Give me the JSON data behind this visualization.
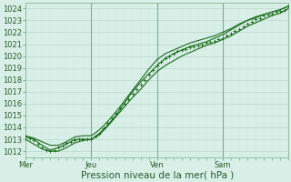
{
  "title": "",
  "xlabel": "Pression niveau de la mer( hPa )",
  "ylabel": "",
  "bg_color": "#d8efe8",
  "plot_bg_color": "#d8f0e8",
  "grid_color_major": "#b8d8cc",
  "grid_color_minor": "#cce8dc",
  "line_color": "#1a6b1a",
  "dot_color": "#1a6b1a",
  "ylim": [
    1011.5,
    1024.5
  ],
  "yticks": [
    1012,
    1013,
    1014,
    1015,
    1016,
    1017,
    1018,
    1019,
    1020,
    1021,
    1022,
    1023,
    1024
  ],
  "xticks_pos": [
    0,
    72,
    144,
    216
  ],
  "xtick_labels": [
    "Mer",
    "Jeu",
    "Ven",
    "Sam"
  ],
  "xlim": [
    0,
    288
  ],
  "series": {
    "line1": {
      "x": [
        0,
        9,
        18,
        27,
        36,
        45,
        54,
        63,
        72,
        81,
        90,
        99,
        108,
        117,
        126,
        135,
        144,
        153,
        162,
        171,
        180,
        189,
        198,
        207,
        216,
        225,
        234,
        243,
        252,
        261,
        270,
        279,
        288
      ],
      "y": [
        1013.2,
        1013.0,
        1012.5,
        1012.1,
        1012.3,
        1012.6,
        1013.0,
        1013.0,
        1013.0,
        1013.5,
        1014.2,
        1015.0,
        1016.0,
        1017.0,
        1017.8,
        1018.5,
        1019.2,
        1019.8,
        1020.2,
        1020.5,
        1020.8,
        1021.0,
        1021.2,
        1021.5,
        1021.8,
        1022.2,
        1022.6,
        1023.0,
        1023.2,
        1023.5,
        1023.7,
        1023.9,
        1024.2
      ]
    },
    "line2": {
      "x": [
        0,
        9,
        18,
        27,
        36,
        45,
        54,
        63,
        72,
        81,
        90,
        99,
        108,
        117,
        126,
        135,
        144,
        153,
        162,
        171,
        180,
        189,
        198,
        207,
        216,
        225,
        234,
        243,
        252,
        261,
        270,
        279,
        288
      ],
      "y": [
        1013.0,
        1012.6,
        1012.2,
        1012.0,
        1012.0,
        1012.3,
        1012.7,
        1012.9,
        1013.0,
        1013.4,
        1014.1,
        1014.9,
        1015.7,
        1016.5,
        1017.2,
        1018.0,
        1018.7,
        1019.2,
        1019.6,
        1020.0,
        1020.3,
        1020.6,
        1020.9,
        1021.1,
        1021.4,
        1021.7,
        1022.1,
        1022.5,
        1022.8,
        1023.1,
        1023.4,
        1023.6,
        1024.0
      ]
    },
    "line3": {
      "x": [
        0,
        9,
        18,
        27,
        36,
        45,
        54,
        63,
        72,
        81,
        90,
        99,
        108,
        117,
        126,
        135,
        144,
        153,
        162,
        171,
        180,
        189,
        198,
        207,
        216,
        225,
        234,
        243,
        252,
        261,
        270,
        279,
        288
      ],
      "y": [
        1013.3,
        1013.1,
        1012.8,
        1012.5,
        1012.5,
        1012.8,
        1013.2,
        1013.3,
        1013.3,
        1013.8,
        1014.5,
        1015.3,
        1016.2,
        1017.1,
        1018.0,
        1018.9,
        1019.7,
        1020.2,
        1020.5,
        1020.8,
        1021.1,
        1021.3,
        1021.5,
        1021.7,
        1022.0,
        1022.3,
        1022.7,
        1023.0,
        1023.3,
        1023.5,
        1023.7,
        1023.9,
        1024.2
      ]
    },
    "line4_dots": {
      "x": [
        0,
        4.5,
        9,
        13.5,
        18,
        22.5,
        27,
        31.5,
        36,
        40.5,
        45,
        49.5,
        54,
        58.5,
        63,
        67.5,
        72,
        76.5,
        81,
        85.5,
        90,
        94.5,
        99,
        103.5,
        108,
        112.5,
        117,
        121.5,
        126,
        130.5,
        135,
        139.5,
        144,
        148.5,
        153,
        157.5,
        162,
        166.5,
        171,
        175.5,
        180,
        184.5,
        189,
        193.5,
        198,
        202.5,
        207,
        211.5,
        216,
        220.5,
        225,
        229.5,
        234,
        238.5,
        243,
        247.5,
        252,
        256.5,
        261,
        265.5,
        270,
        274.5,
        279,
        283.5,
        288
      ],
      "y": [
        1013.2,
        1013.1,
        1012.9,
        1012.6,
        1012.3,
        1012.1,
        1012.0,
        1012.1,
        1012.3,
        1012.5,
        1012.7,
        1012.8,
        1012.9,
        1013.0,
        1013.0,
        1013.0,
        1013.0,
        1013.2,
        1013.5,
        1013.9,
        1014.4,
        1014.8,
        1015.2,
        1015.6,
        1016.0,
        1016.4,
        1016.8,
        1017.2,
        1017.6,
        1018.0,
        1018.4,
        1018.8,
        1019.2,
        1019.5,
        1019.8,
        1020.0,
        1020.2,
        1020.4,
        1020.5,
        1020.6,
        1020.7,
        1020.8,
        1020.9,
        1021.0,
        1021.1,
        1021.2,
        1021.3,
        1021.4,
        1021.5,
        1021.7,
        1021.9,
        1022.1,
        1022.3,
        1022.5,
        1022.7,
        1022.9,
        1023.1,
        1023.2,
        1023.4,
        1023.5,
        1023.6,
        1023.7,
        1023.8,
        1023.9,
        1024.2
      ]
    }
  },
  "vlines": [
    72,
    144,
    216
  ],
  "tick_fontsize": 6.0,
  "xlabel_fontsize": 7.5
}
